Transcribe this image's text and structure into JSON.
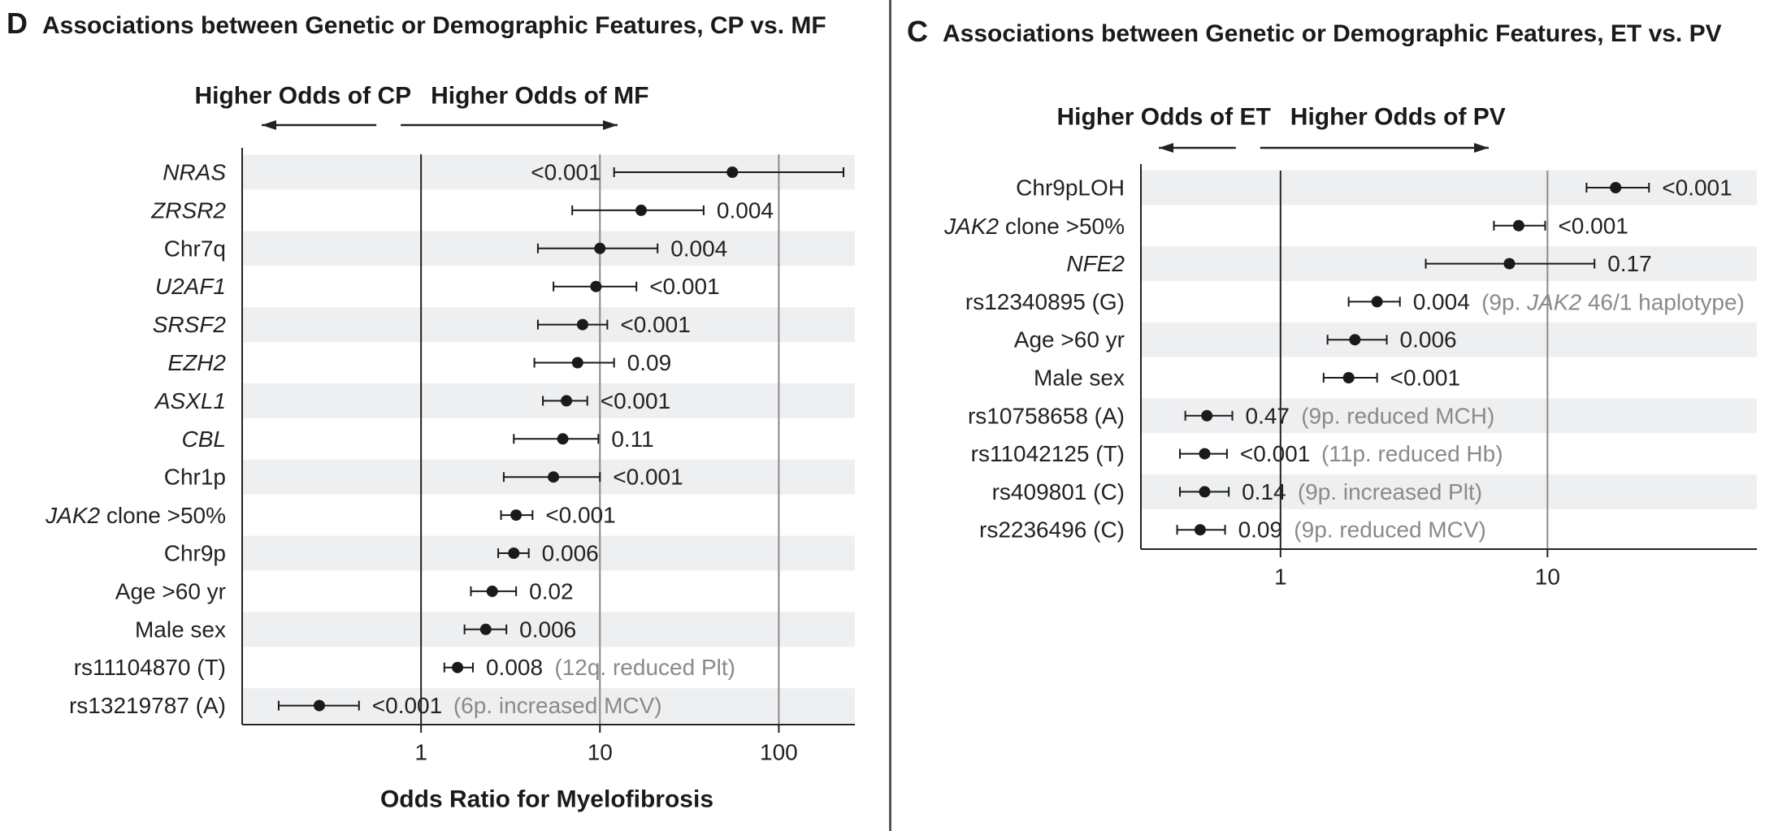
{
  "panels": [
    {
      "letter": "D",
      "title": "Associations between Genetic or Demographic Features, CP vs. MF",
      "left_heading": "Higher Odds of CP",
      "right_heading": "Higher Odds of MF",
      "xlabel": "Odds Ratio for Myelofibrosis",
      "ticks": [
        "1",
        "10",
        "100"
      ]
    },
    {
      "letter": "C",
      "title": "Associations between Genetic or Demographic Features, ET vs. PV",
      "left_heading": "Higher Odds of ET",
      "right_heading": "Higher Odds of PV",
      "xlabel": "",
      "ticks": [
        "1",
        "10"
      ]
    }
  ],
  "chart_data": [
    {
      "type": "forest",
      "title": "Associations between Genetic or Demographic Features, CP vs. MF",
      "xlabel": "Odds Ratio for Myelofibrosis",
      "xscale": "log",
      "xticks": [
        1,
        10,
        100
      ],
      "xlim": [
        0.1,
        250
      ],
      "grid": "vertical lines at 1, 10, 100",
      "rows": [
        {
          "label": "NRAS",
          "italic": true,
          "or": 55,
          "lo": 12,
          "hi": 230,
          "p": "<0.001",
          "note": "",
          "p_side": "left"
        },
        {
          "label": "ZRSR2",
          "italic": true,
          "or": 17,
          "lo": 7,
          "hi": 38,
          "p": "0.004",
          "note": "",
          "p_side": "right"
        },
        {
          "label": "Chr7q",
          "italic": false,
          "or": 10,
          "lo": 4.5,
          "hi": 21,
          "p": "0.004",
          "note": "",
          "p_side": "right"
        },
        {
          "label": "U2AF1",
          "italic": true,
          "or": 9.5,
          "lo": 5.5,
          "hi": 16,
          "p": "<0.001",
          "note": "",
          "p_side": "right"
        },
        {
          "label": "SRSF2",
          "italic": true,
          "or": 8,
          "lo": 4.5,
          "hi": 11,
          "p": "<0.001",
          "note": "",
          "p_side": "right"
        },
        {
          "label": "EZH2",
          "italic": true,
          "or": 7.5,
          "lo": 4.3,
          "hi": 12,
          "p": "0.09",
          "note": "",
          "p_side": "right"
        },
        {
          "label": "ASXL1",
          "italic": true,
          "or": 6.5,
          "lo": 4.8,
          "hi": 8.5,
          "p": "<0.001",
          "note": "",
          "p_side": "right"
        },
        {
          "label": "CBL",
          "italic": true,
          "or": 6.2,
          "lo": 3.3,
          "hi": 9.8,
          "p": "0.11",
          "note": "",
          "p_side": "right"
        },
        {
          "label": "Chr1p",
          "italic": false,
          "or": 5.5,
          "lo": 2.9,
          "hi": 10,
          "p": "<0.001",
          "note": "",
          "p_side": "right"
        },
        {
          "label": "JAK2 clone >50%",
          "italic": false,
          "italic_part": "JAK2",
          "or": 3.4,
          "lo": 2.8,
          "hi": 4.2,
          "p": "<0.001",
          "note": "",
          "p_side": "right"
        },
        {
          "label": "Chr9p",
          "italic": false,
          "or": 3.3,
          "lo": 2.7,
          "hi": 4.0,
          "p": "0.006",
          "note": "",
          "p_side": "right"
        },
        {
          "label": "Age >60 yr",
          "italic": false,
          "or": 2.5,
          "lo": 1.9,
          "hi": 3.4,
          "p": "0.02",
          "note": "",
          "p_side": "right"
        },
        {
          "label": "Male sex",
          "italic": false,
          "or": 2.3,
          "lo": 1.75,
          "hi": 3.0,
          "p": "0.006",
          "note": "",
          "p_side": "right"
        },
        {
          "label": "rs11104870 (T)",
          "italic": false,
          "or": 1.6,
          "lo": 1.35,
          "hi": 1.95,
          "p": "0.008",
          "note": "(12q. reduced Plt)",
          "p_side": "right"
        },
        {
          "label": "rs13219787 (A)",
          "italic": false,
          "or": 0.27,
          "lo": 0.16,
          "hi": 0.45,
          "p": "<0.001",
          "note": "(6p. increased MCV)",
          "p_side": "right"
        }
      ]
    },
    {
      "type": "forest",
      "title": "Associations between Genetic or Demographic Features, ET vs. PV",
      "xscale": "log",
      "xticks": [
        1,
        10
      ],
      "xlim": [
        0.3,
        60
      ],
      "grid": "vertical lines at 1, 10",
      "rows": [
        {
          "label": "Chr9pLOH",
          "italic": false,
          "or": 18,
          "lo": 14,
          "hi": 24,
          "p": "<0.001",
          "note": ""
        },
        {
          "label": "JAK2 clone >50%",
          "italic": false,
          "italic_part": "JAK2",
          "or": 7.8,
          "lo": 6.3,
          "hi": 9.8,
          "p": "<0.001",
          "note": ""
        },
        {
          "label": "NFE2",
          "italic": true,
          "or": 7.2,
          "lo": 3.5,
          "hi": 15,
          "p": "0.17",
          "note": ""
        },
        {
          "label": "rs12340895 (G)",
          "italic": false,
          "or": 2.3,
          "lo": 1.8,
          "hi": 2.8,
          "p": "0.004",
          "note": "(9p. JAK2 46/1 haplotype)",
          "note_italic_part": "JAK2"
        },
        {
          "label": "Age >60 yr",
          "italic": false,
          "or": 1.9,
          "lo": 1.5,
          "hi": 2.5,
          "p": "0.006",
          "note": ""
        },
        {
          "label": "Male sex",
          "italic": false,
          "or": 1.8,
          "lo": 1.45,
          "hi": 2.3,
          "p": "<0.001",
          "note": ""
        },
        {
          "label": "rs10758658 (A)",
          "italic": false,
          "or": 0.53,
          "lo": 0.44,
          "hi": 0.66,
          "p": "0.47",
          "note": "(9p. reduced MCH)"
        },
        {
          "label": "rs11042125 (T)",
          "italic": false,
          "or": 0.52,
          "lo": 0.42,
          "hi": 0.63,
          "p": "<0.001",
          "note": "(11p. reduced Hb)"
        },
        {
          "label": "rs409801 (C)",
          "italic": false,
          "or": 0.52,
          "lo": 0.42,
          "hi": 0.64,
          "p": "0.14",
          "note": "(9p. increased Plt)"
        },
        {
          "label": "rs2236496 (C)",
          "italic": false,
          "or": 0.5,
          "lo": 0.41,
          "hi": 0.62,
          "p": "0.09",
          "note": "(9p. reduced MCV)"
        }
      ]
    }
  ],
  "colors": {
    "band": "#eeeff1",
    "axis": "#222222",
    "grid_light": "#8a8a8a",
    "note": "#8a8a8a",
    "point": "#1a1a1a"
  }
}
